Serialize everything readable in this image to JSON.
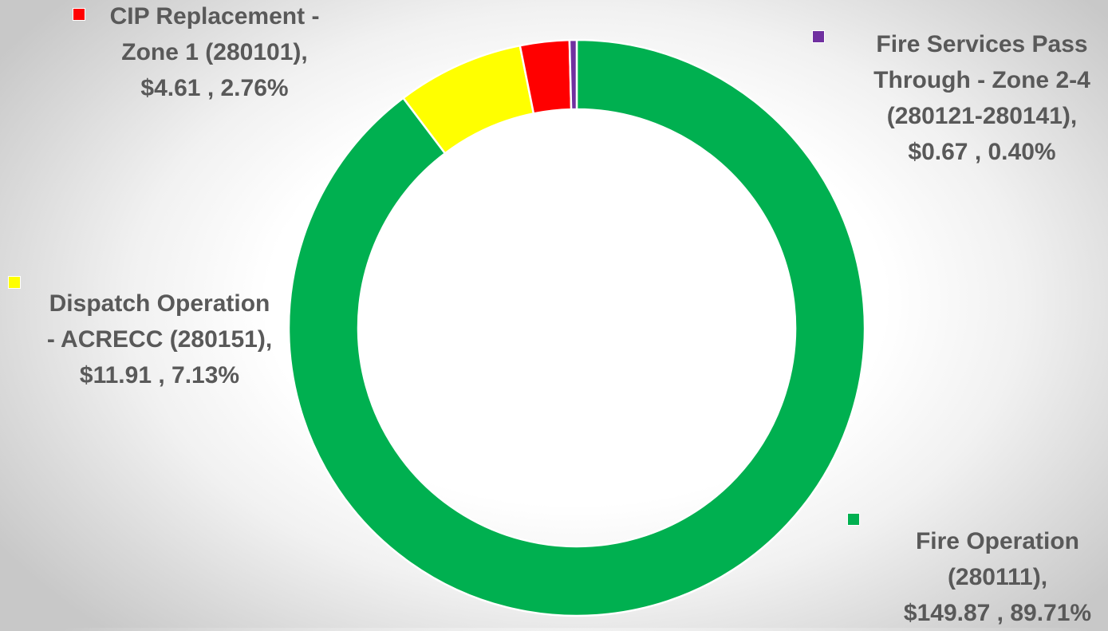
{
  "chart_data": {
    "type": "pie",
    "variant": "doughnut",
    "start_angle_deg": 0,
    "direction": "clockwise",
    "legend_placement": "data-labels",
    "slices": [
      {
        "label_lines": [
          "Fire Operation",
          "(280111),",
          "$149.87 , 89.71%"
        ],
        "value": 149.87,
        "percent": "89.71%",
        "color": "#00b050"
      },
      {
        "label_lines": [
          "Dispatch Operation",
          "- ACRECC (280151),",
          "$11.91 , 7.13%"
        ],
        "value": 11.91,
        "percent": "7.13%",
        "color": "#ffff00"
      },
      {
        "label_lines": [
          "CIP Replacement -",
          "Zone 1 (280101),",
          "$4.61 , 2.76%"
        ],
        "value": 4.61,
        "percent": "2.76%",
        "color": "#ff0000"
      },
      {
        "label_lines": [
          "Fire Services Pass",
          "Through - Zone 2-4",
          "(280121-280141),",
          "$0.67 , 0.40%"
        ],
        "value": 0.67,
        "percent": "0.40%",
        "color": "#7030a0"
      }
    ]
  }
}
